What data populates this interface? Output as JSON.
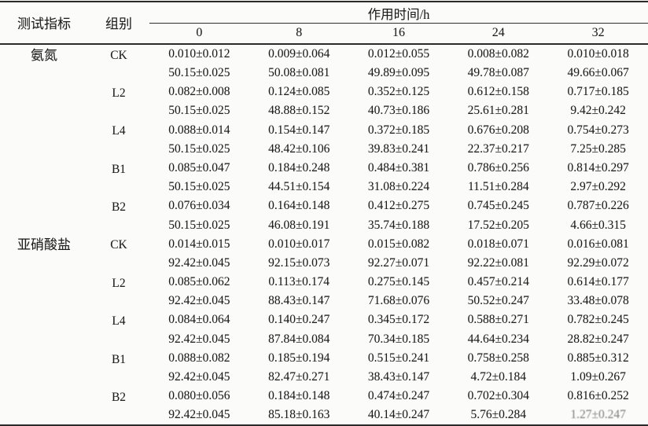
{
  "page": {
    "background": "#fbfbf9",
    "ink_color": "#1d1d1d",
    "rule_color": "#2a2a2a"
  },
  "table": {
    "header": {
      "indicator": "测试指标",
      "group": "组别",
      "time_label": "作用时间/h",
      "time_points": [
        "0",
        "8",
        "16",
        "24",
        "32"
      ]
    },
    "sections": [
      {
        "indicator": "氨氮",
        "groups": [
          {
            "name": "CK",
            "rows": [
              [
                "0.010±0.012",
                "0.009±0.064",
                "0.012±0.055",
                "0.008±0.082",
                "0.010±0.018"
              ],
              [
                "50.15±0.025",
                "50.08±0.081",
                "49.89±0.095",
                "49.78±0.087",
                "49.66±0.067"
              ]
            ]
          },
          {
            "name": "L2",
            "rows": [
              [
                "0.082±0.008",
                "0.124±0.085",
                "0.352±0.125",
                "0.612±0.158",
                "0.717±0.185"
              ],
              [
                "50.15±0.025",
                "48.88±0.152",
                "40.73±0.186",
                "25.61±0.281",
                "9.42±0.242"
              ]
            ]
          },
          {
            "name": "L4",
            "rows": [
              [
                "0.088±0.014",
                "0.154±0.147",
                "0.372±0.185",
                "0.676±0.208",
                "0.754±0.273"
              ],
              [
                "50.15±0.025",
                "48.42±0.106",
                "39.83±0.241",
                "22.37±0.217",
                "7.25±0.285"
              ]
            ]
          },
          {
            "name": "B1",
            "rows": [
              [
                "0.085±0.047",
                "0.184±0.248",
                "0.484±0.381",
                "0.786±0.256",
                "0.814±0.297"
              ],
              [
                "50.15±0.025",
                "44.51±0.154",
                "31.08±0.224",
                "11.51±0.284",
                "2.97±0.292"
              ]
            ]
          },
          {
            "name": "B2",
            "rows": [
              [
                "0.076±0.034",
                "0.164±0.148",
                "0.412±0.275",
                "0.745±0.245",
                "0.787±0.226"
              ],
              [
                "50.15±0.025",
                "46.08±0.191",
                "35.74±0.188",
                "17.52±0.205",
                "4.66±0.315"
              ]
            ]
          }
        ]
      },
      {
        "indicator": "亚硝酸盐",
        "groups": [
          {
            "name": "CK",
            "rows": [
              [
                "0.014±0.015",
                "0.010±0.017",
                "0.015±0.082",
                "0.018±0.071",
                "0.016±0.081"
              ],
              [
                "92.42±0.045",
                "92.15±0.073",
                "92.27±0.071",
                "92.22±0.081",
                "92.29±0.072"
              ]
            ]
          },
          {
            "name": "L2",
            "rows": [
              [
                "0.085±0.062",
                "0.113±0.174",
                "0.275±0.145",
                "0.457±0.214",
                "0.614±0.177"
              ],
              [
                "92.42±0.045",
                "88.43±0.147",
                "71.68±0.076",
                "50.52±0.247",
                "33.48±0.078"
              ]
            ]
          },
          {
            "name": "L4",
            "rows": [
              [
                "0.084±0.064",
                "0.140±0.247",
                "0.345±0.172",
                "0.588±0.271",
                "0.782±0.245"
              ],
              [
                "92.42±0.045",
                "87.84±0.084",
                "70.34±0.185",
                "44.64±0.234",
                "28.82±0.247"
              ]
            ]
          },
          {
            "name": "B1",
            "rows": [
              [
                "0.088±0.082",
                "0.185±0.194",
                "0.515±0.241",
                "0.758±0.258",
                "0.885±0.312"
              ],
              [
                "92.42±0.045",
                "82.47±0.271",
                "38.43±0.147",
                "4.72±0.184",
                "1.09±0.267"
              ]
            ]
          },
          {
            "name": "B2",
            "rows": [
              [
                "0.080±0.056",
                "0.184±0.148",
                "0.474±0.247",
                "0.702±0.304",
                "0.816±0.252"
              ],
              [
                "92.42±0.045",
                "85.18±0.163",
                "40.14±0.247",
                "5.76±0.284",
                "1.27±0.247"
              ]
            ]
          }
        ]
      }
    ]
  }
}
